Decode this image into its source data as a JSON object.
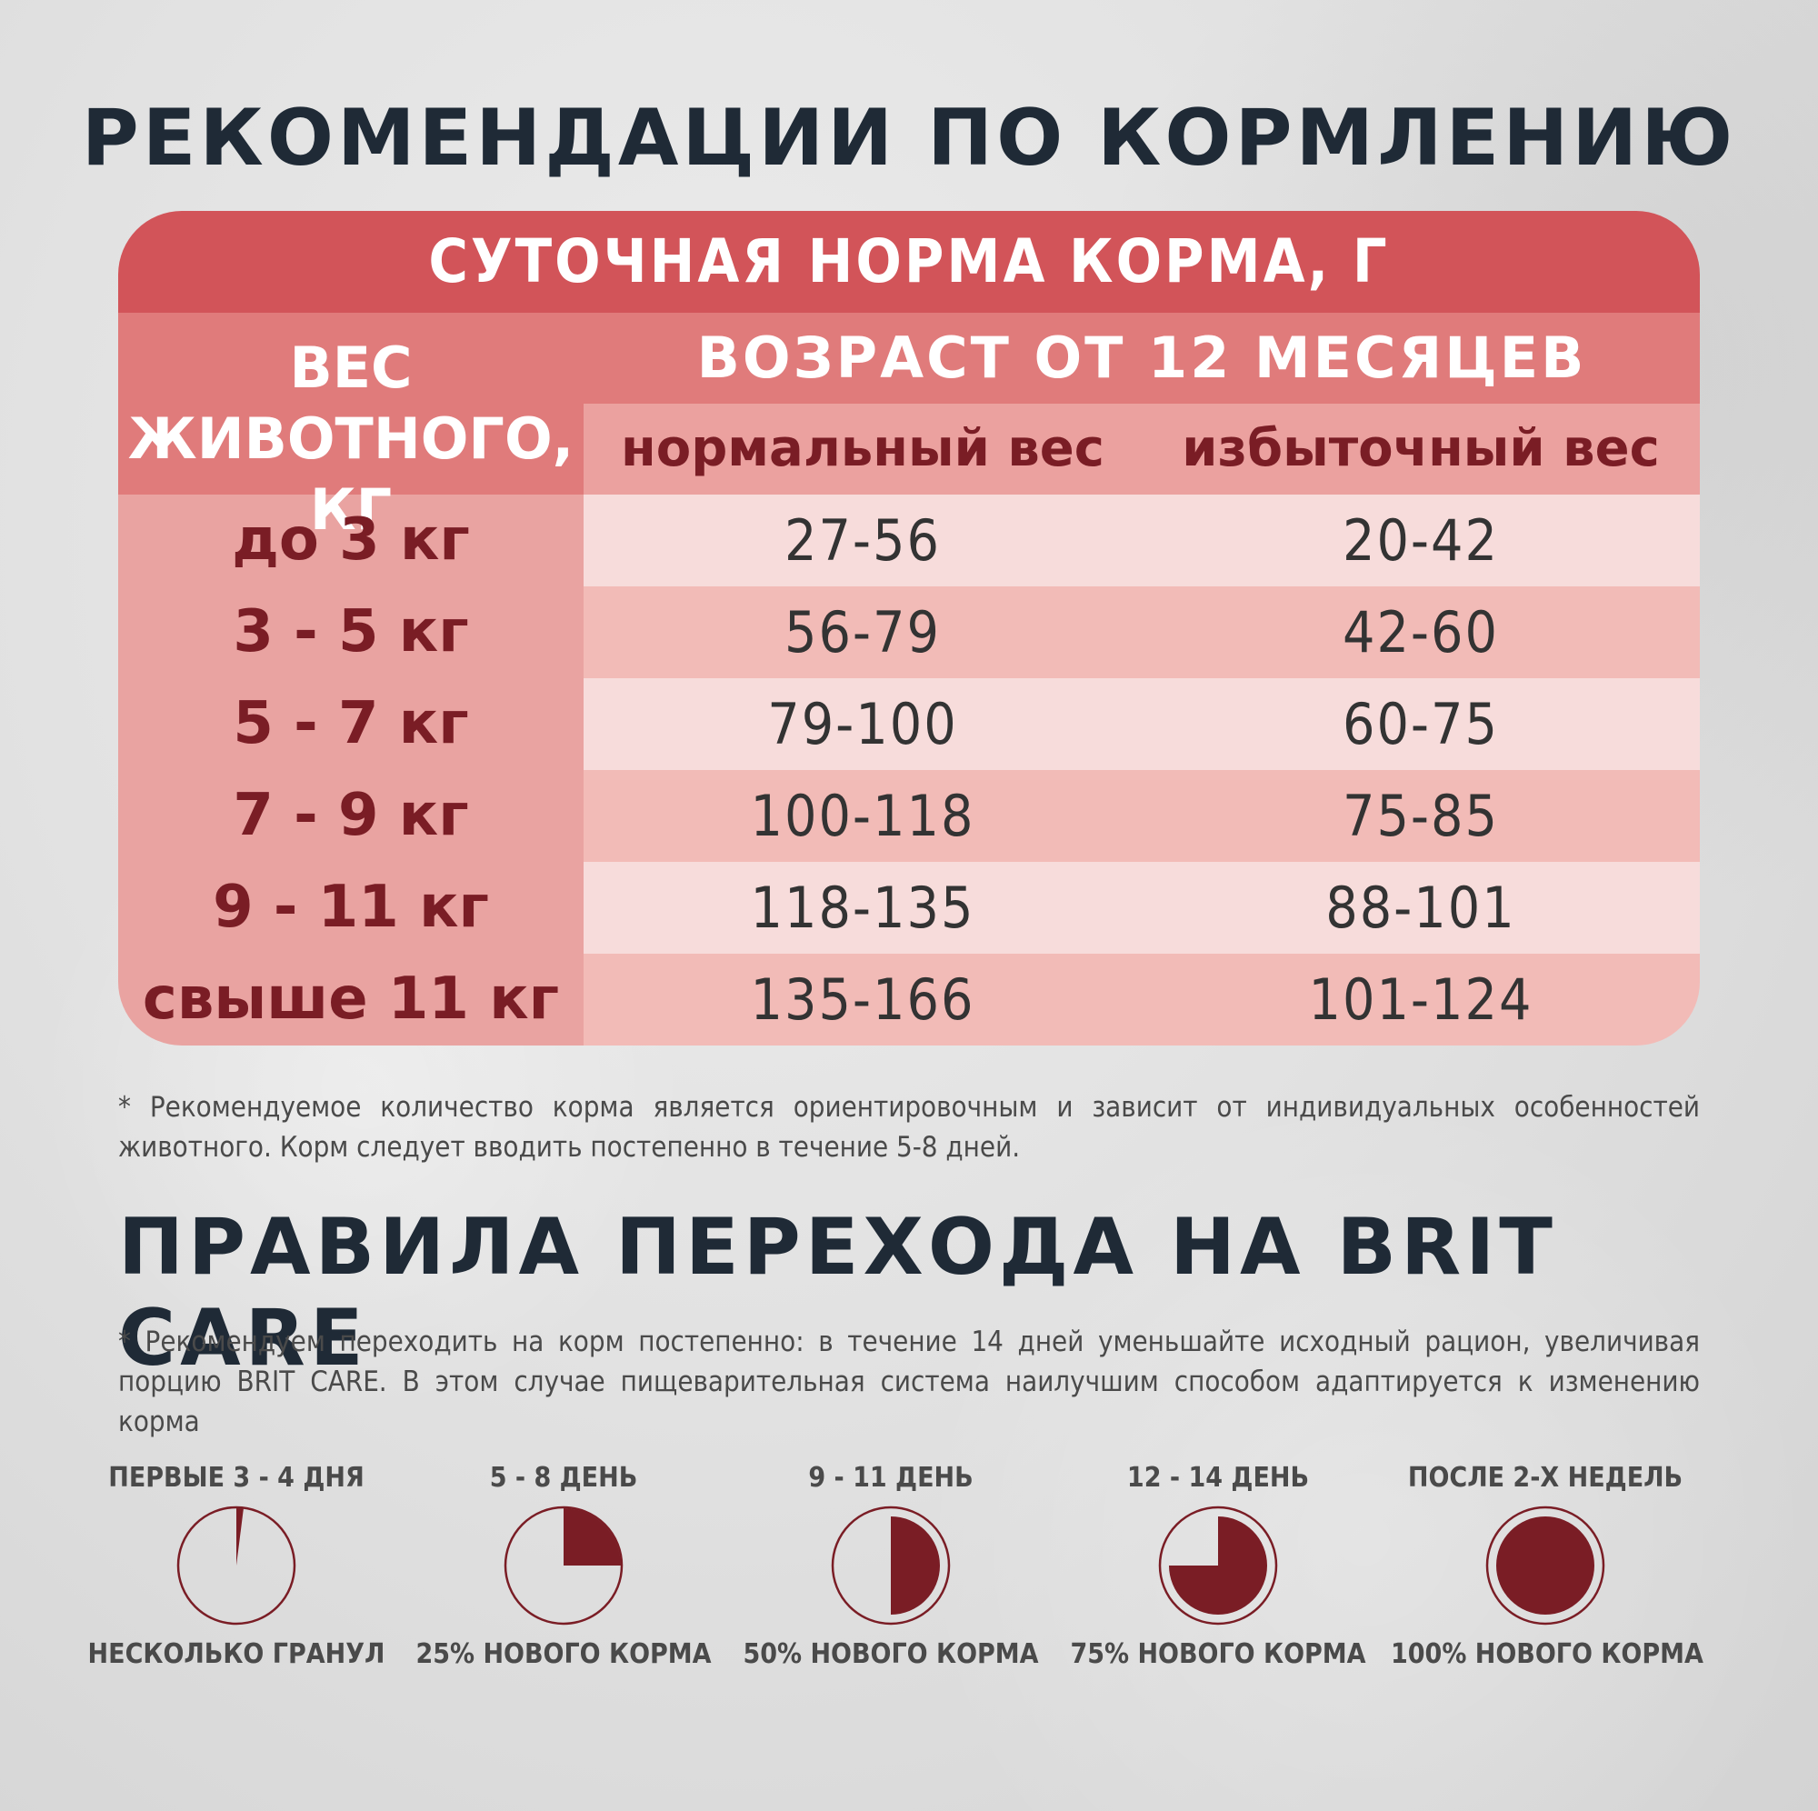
{
  "title": "РЕКОМЕНДАЦИИ ПО КОРМЛЕНИЮ",
  "table": {
    "header": "СУТОЧНАЯ НОРМА КОРМА, Г",
    "weight_header_line1": "ВЕС",
    "weight_header_line2": "ЖИВОТНОГО, КГ",
    "age_header": "ВОЗРАСТ ОТ 12 МЕСЯЦЕВ",
    "col_normal": "нормальный вес",
    "col_over": "избыточный вес",
    "rows": [
      {
        "weight": "до 3 кг",
        "normal": "27-56",
        "over": "20-42"
      },
      {
        "weight": "3 - 5 кг",
        "normal": "56-79",
        "over": "42-60"
      },
      {
        "weight": "5 - 7 кг",
        "normal": "79-100",
        "over": "60-75"
      },
      {
        "weight": "7 - 9 кг",
        "normal": "100-118",
        "over": "75-85"
      },
      {
        "weight": "9 - 11 кг",
        "normal": "118-135",
        "over": "88-101"
      },
      {
        "weight": "свыше 11 кг",
        "normal": "135-166",
        "over": "101-124"
      }
    ]
  },
  "note1": "* Рекомендуемое количество корма является ориентировочным и зависит от индивидуальных особенностей животного. Корм следует вводить постепенно в течение 5-8 дней.",
  "title2": "ПРАВИЛА ПЕРЕХОДА НА BRIT CARE",
  "note2": "* Рекомендуем переходить на корм постепенно: в течение 14 дней уменьшайте исходный рацион, увеличивая порцию BRIT CARE. В этом случае пищеварительная система наилучшим способом адаптируется к изменению корма",
  "colors": {
    "accent_dark": "#7a1d25",
    "header_red": "#d25459"
  },
  "steps": [
    {
      "period": "ПЕРВЫЕ 3 - 4 ДНЯ",
      "label": "НЕСКОЛЬКО ГРАНУЛ",
      "fraction": 0.02
    },
    {
      "period": "5 - 8 ДЕНЬ",
      "label": "25% НОВОГО КОРМА",
      "fraction": 0.25
    },
    {
      "period": "9 - 11 ДЕНЬ",
      "label": "50% НОВОГО КОРМА",
      "fraction": 0.5
    },
    {
      "period": "12 - 14 ДЕНЬ",
      "label": "75% НОВОГО КОРМА",
      "fraction": 0.75
    },
    {
      "period": "ПОСЛЕ 2-Х НЕДЕЛЬ",
      "label": "100% НОВОГО КОРМА",
      "fraction": 1.0
    }
  ]
}
